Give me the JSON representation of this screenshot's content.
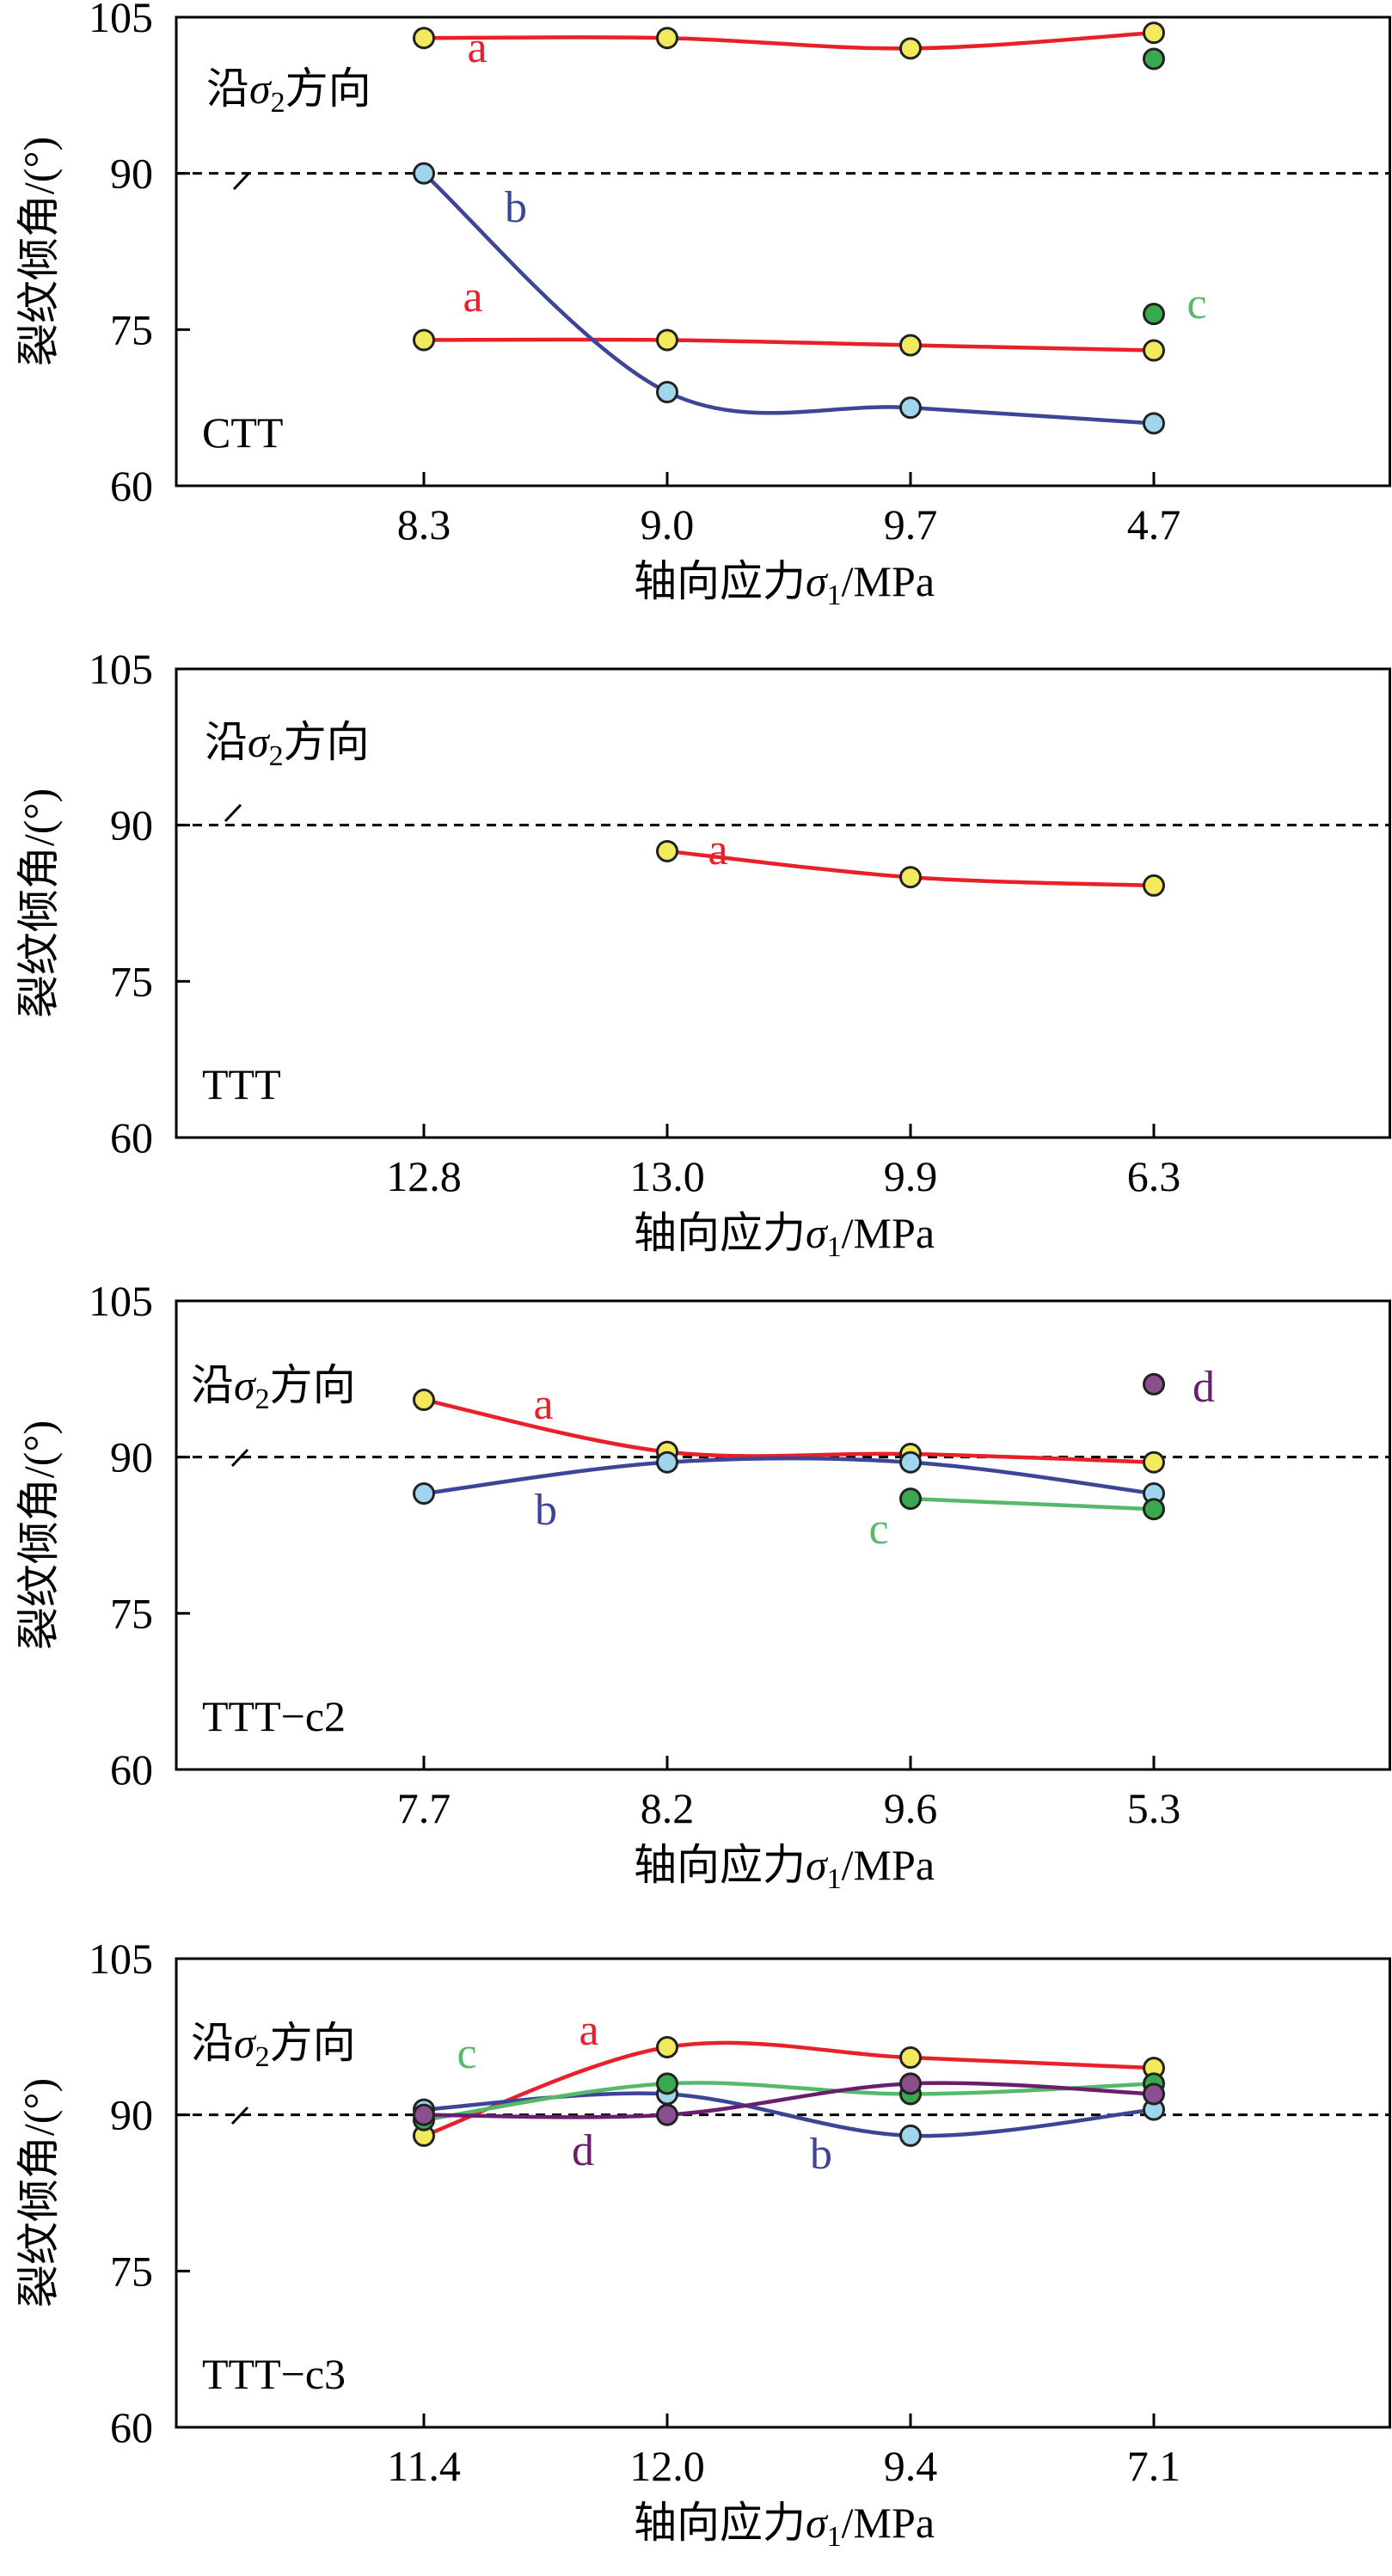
{
  "colors": {
    "axis": "#000000",
    "series_a": "#e8202a",
    "series_b": "#3d4596",
    "series_c": "#55b96a",
    "series_d": "#6a1f6e",
    "marker_yellow": "#f2ea5c",
    "marker_blue": "#9fd6ee",
    "marker_green": "#3aa84e",
    "marker_purple": "#8b4e8f",
    "marker_edge": "#222222"
  },
  "chart_data": [
    {
      "type": "line",
      "panel_label": "CTT",
      "xlabel": "轴向应力σ1/MPa",
      "ylabel": "裂纹倾角/(°)",
      "categories": [
        "8.3",
        "9.0",
        "9.7",
        "4.7"
      ],
      "ylim": [
        60,
        105
      ],
      "yticks": [
        60,
        75,
        90,
        105
      ],
      "reference_line": {
        "y": 90,
        "style": "dashed",
        "label": "沿σ2方向"
      },
      "series": [
        {
          "name": "a",
          "color": "series_a",
          "marker": "marker_yellow",
          "values": [
            103,
            103,
            102,
            103.5
          ]
        },
        {
          "name": "a",
          "color": "series_a",
          "marker": "marker_yellow",
          "values": [
            74,
            74,
            73.5,
            73
          ]
        },
        {
          "name": "b",
          "color": "series_b",
          "marker": "marker_blue",
          "values": [
            90,
            69,
            67.5,
            66
          ]
        },
        {
          "name": "c",
          "color": "series_c",
          "marker": "marker_green",
          "values": [
            null,
            null,
            null,
            76.5
          ]
        },
        {
          "name": "",
          "color": "series_c",
          "marker": "marker_green",
          "values": [
            null,
            null,
            null,
            101
          ]
        }
      ]
    },
    {
      "type": "line",
      "panel_label": "TTT",
      "xlabel": "轴向应力σ1/MPa",
      "ylabel": "裂纹倾角/(°)",
      "categories": [
        "12.8",
        "13.0",
        "9.9",
        "6.3"
      ],
      "ylim": [
        60,
        105
      ],
      "yticks": [
        60,
        75,
        90,
        105
      ],
      "reference_line": {
        "y": 90,
        "style": "dashed",
        "label": "沿σ2方向"
      },
      "series": [
        {
          "name": "a",
          "color": "series_a",
          "marker": "marker_yellow",
          "values": [
            null,
            87.5,
            85,
            84.2
          ]
        }
      ]
    },
    {
      "type": "line",
      "panel_label": "TTT−c2",
      "xlabel": "轴向应力σ1/MPa",
      "ylabel": "裂纹倾角/(°)",
      "categories": [
        "7.7",
        "8.2",
        "9.6",
        "5.3"
      ],
      "ylim": [
        60,
        105
      ],
      "yticks": [
        60,
        75,
        90,
        105
      ],
      "reference_line": {
        "y": 90,
        "style": "dashed",
        "label": "沿σ2方向"
      },
      "series": [
        {
          "name": "a",
          "color": "series_a",
          "marker": "marker_yellow",
          "values": [
            95.5,
            90.5,
            90.3,
            89.5
          ]
        },
        {
          "name": "b",
          "color": "series_b",
          "marker": "marker_blue",
          "values": [
            86.5,
            89.5,
            89.5,
            86.5
          ]
        },
        {
          "name": "c",
          "color": "series_c",
          "marker": "marker_green",
          "values": [
            null,
            null,
            86,
            85
          ]
        },
        {
          "name": "d",
          "color": "series_d",
          "marker": "marker_purple",
          "values": [
            null,
            null,
            null,
            97
          ]
        }
      ]
    },
    {
      "type": "line",
      "panel_label": "TTT−c3",
      "xlabel": "轴向应力σ1/MPa",
      "ylabel": "裂纹倾角/(°)",
      "categories": [
        "11.4",
        "12.0",
        "9.4",
        "7.1"
      ],
      "ylim": [
        60,
        105
      ],
      "yticks": [
        60,
        75,
        90,
        105
      ],
      "reference_line": {
        "y": 90,
        "style": "dashed",
        "label": "沿σ2方向"
      },
      "series": [
        {
          "name": "a",
          "color": "series_a",
          "marker": "marker_yellow",
          "values": [
            88,
            96.5,
            95.5,
            94.5
          ]
        },
        {
          "name": "b",
          "color": "series_b",
          "marker": "marker_blue",
          "values": [
            90.5,
            92,
            88,
            90.5
          ]
        },
        {
          "name": "c",
          "color": "series_c",
          "marker": "marker_green",
          "values": [
            89.5,
            93,
            92,
            93
          ]
        },
        {
          "name": "d",
          "color": "series_d",
          "marker": "marker_purple",
          "values": [
            90,
            90,
            93,
            92
          ]
        }
      ]
    }
  ]
}
